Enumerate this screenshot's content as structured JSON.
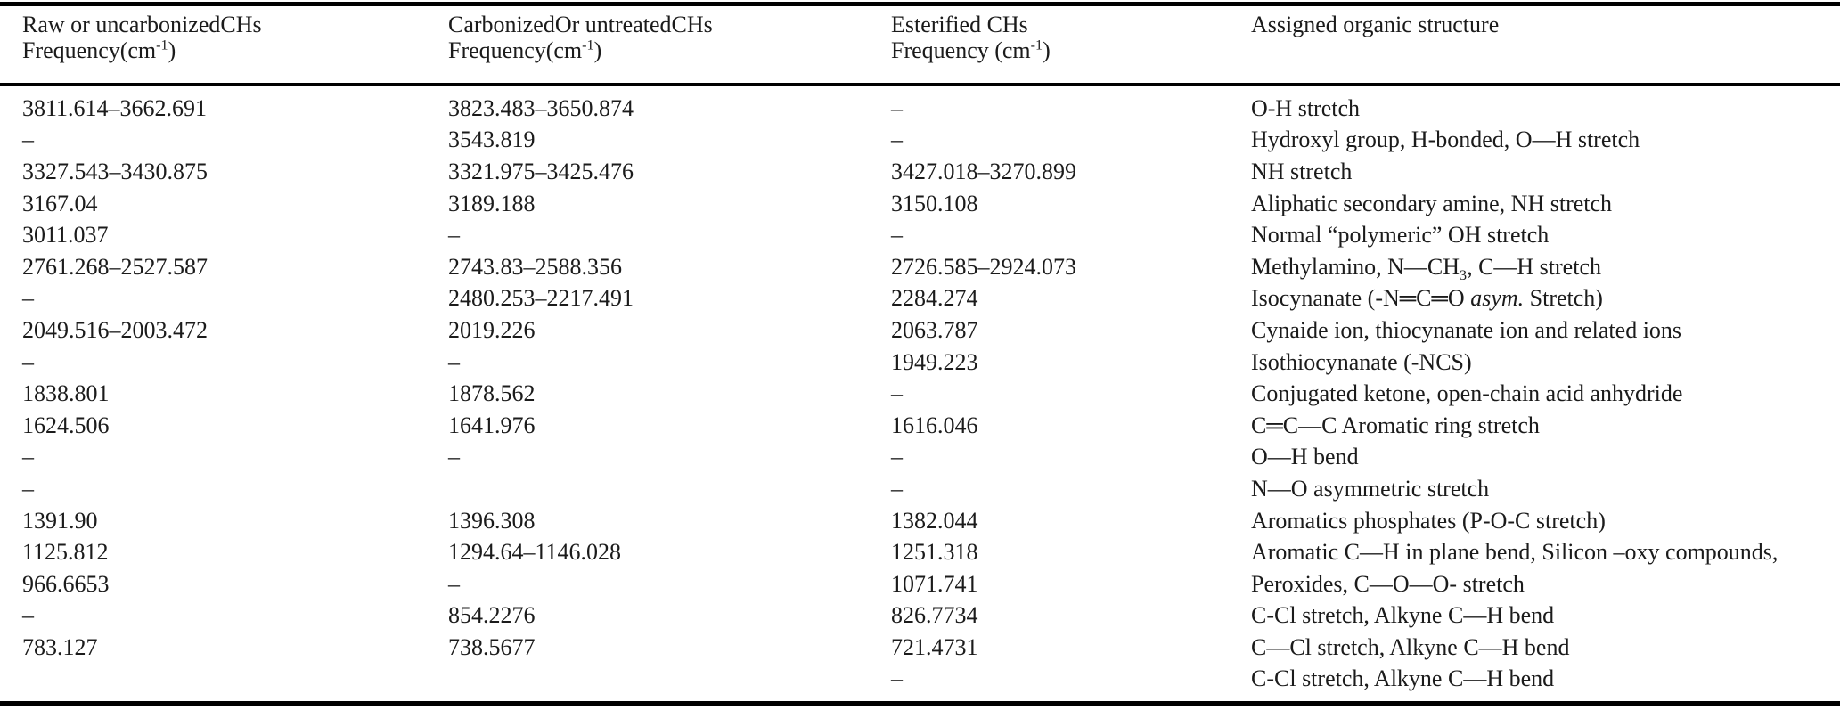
{
  "colors": {
    "background": "#ffffff",
    "text": "#1b1b1b",
    "rule": "#000000"
  },
  "table": {
    "columns": [
      {
        "line1": "Raw or uncarbonizedCHs",
        "line2": "Frequency(cm^-1^)"
      },
      {
        "line1": "CarbonizedOr untreatedCHs",
        "line2": "Frequency(cm^-1^)"
      },
      {
        "line1": "Esterified CHs",
        "line2": "Frequency (cm^-1^)"
      },
      {
        "line1": "Assigned organic structure",
        "line2": ""
      }
    ],
    "rows": [
      [
        "3811.614–3662.691",
        "3823.483–3650.874",
        "–",
        "O-H stretch"
      ],
      [
        "–",
        "3543.819",
        "–",
        "Hydroxyl group, H-bonded, O—H stretch"
      ],
      [
        "3327.543–3430.875",
        "3321.975–3425.476",
        "3427.018–3270.899",
        "NH stretch"
      ],
      [
        "3167.04",
        "3189.188",
        "3150.108",
        "Aliphatic secondary amine, NH stretch"
      ],
      [
        "3011.037",
        "–",
        "–",
        "Normal “polymeric” OH stretch"
      ],
      [
        "2761.268–2527.587",
        "2743.83–2588.356",
        "2726.585–2924.073",
        "Methylamino, N—CH~3~, C—H stretch"
      ],
      [
        "–",
        "2480.253–2217.491",
        "2284.274",
        "Isocynanate (-N═C═O *asym.* Stretch)"
      ],
      [
        "2049.516–2003.472",
        "2019.226",
        "2063.787",
        "Cynaide ion, thiocynanate ion and related ions"
      ],
      [
        "–",
        "–",
        "1949.223",
        "Isothiocynanate (-NCS)"
      ],
      [
        "1838.801",
        "1878.562",
        "–",
        "Conjugated ketone, open-chain acid anhydride"
      ],
      [
        "1624.506",
        "1641.976",
        "1616.046",
        "C═C—C Aromatic ring stretch"
      ],
      [
        "–",
        "–",
        "–",
        "O—H bend"
      ],
      [
        "–",
        "",
        "–",
        "N—O asymmetric stretch"
      ],
      [
        "1391.90",
        "1396.308",
        "1382.044",
        "Aromatics phosphates (P-O-C stretch)"
      ],
      [
        "1125.812",
        "1294.64–1146.028",
        "1251.318",
        "Aromatic C—H in plane bend, Silicon –oxy compounds,"
      ],
      [
        "966.6653",
        "–",
        "1071.741",
        "Peroxides, C—O—O- stretch"
      ],
      [
        "–",
        "854.2276",
        "826.7734",
        "C-Cl stretch, Alkyne C—H bend"
      ],
      [
        "783.127",
        "738.5677",
        "721.4731",
        "C—Cl stretch, Alkyne C—H bend"
      ],
      [
        "",
        "",
        "–",
        "C-Cl stretch, Alkyne C—H bend"
      ]
    ]
  }
}
